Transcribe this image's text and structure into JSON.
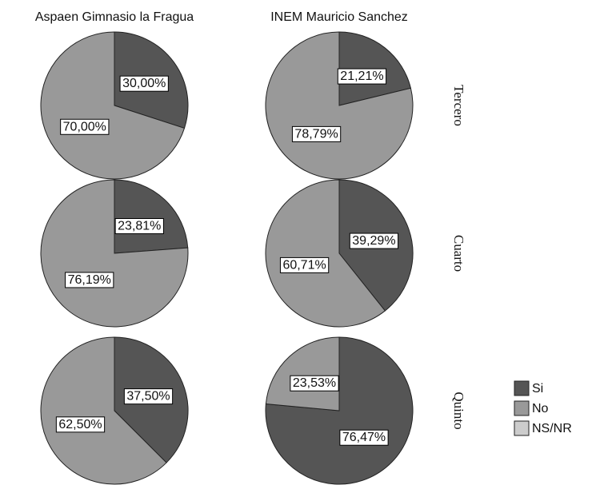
{
  "chart_data": {
    "type": "pie",
    "columns": [
      "Aspaen Gimnasio la Fragua",
      "INEM Mauricio Sanchez"
    ],
    "rows": [
      "Tercero",
      "Cuarto",
      "Quinto"
    ],
    "legend": [
      "Si",
      "No",
      "NS/NR"
    ],
    "colors": [
      "#555555",
      "#999999",
      "#cccccc"
    ],
    "pies": [
      [
        {
          "values": [
            30.0,
            70.0
          ],
          "value_labels": [
            "30,00%",
            "70,00%"
          ]
        },
        {
          "values": [
            21.21,
            78.79
          ],
          "value_labels": [
            "21,21%",
            "78,79%"
          ]
        }
      ],
      [
        {
          "values": [
            23.81,
            76.19
          ],
          "value_labels": [
            "23,81%",
            "76,19%"
          ]
        },
        {
          "values": [
            39.29,
            60.71
          ],
          "value_labels": [
            "39,29%",
            "60,71%"
          ]
        }
      ],
      [
        {
          "values": [
            37.5,
            62.5
          ],
          "value_labels": [
            "37,50%",
            "62,50%"
          ]
        },
        {
          "values": [
            76.47,
            23.53
          ],
          "value_labels": [
            "76,47%",
            "23,53%"
          ]
        }
      ]
    ]
  }
}
